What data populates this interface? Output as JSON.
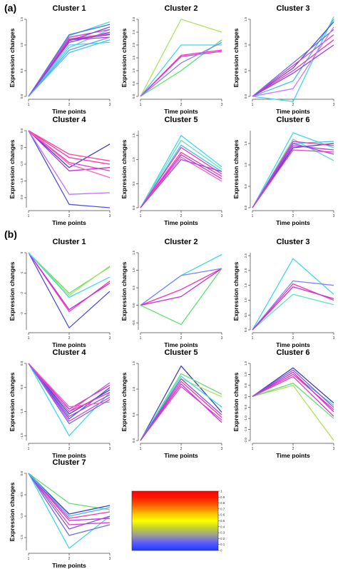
{
  "panels": [
    {
      "label": "(a)"
    },
    {
      "label": "(b)"
    }
  ],
  "colorbar": {
    "ticks": [
      "1",
      "0.9",
      "0.8",
      "0.7",
      "0.6",
      "0.5",
      "0.4",
      "0.3",
      "0.2",
      "0.1",
      "0"
    ],
    "gradient": [
      "#1a3cff",
      "#5a5aff",
      "#9a9a9a",
      "#c0d030",
      "#ffff00",
      "#ffbf00",
      "#ff6600",
      "#ff2200",
      "#ff0000"
    ]
  },
  "chart_data": [
    {
      "panel": "(a)",
      "type": "line",
      "title": "Cluster 1",
      "xlabel": "Time points",
      "ylabel": "Expression changes",
      "x": [
        1,
        2,
        3
      ],
      "yticks": [
        0,
        0.5,
        1.0,
        1.5
      ],
      "ylim": [
        0,
        1.5
      ],
      "series": [
        {
          "color": "#4fd1e8",
          "values": [
            0,
            1.18,
            1.45
          ]
        },
        {
          "color": "#4fd1e8",
          "values": [
            0,
            1.0,
            1.05
          ]
        },
        {
          "color": "#40c8f0",
          "values": [
            0,
            0.85,
            1.1
          ]
        },
        {
          "color": "#4fd1e8",
          "values": [
            0,
            0.95,
            1.3
          ]
        },
        {
          "color": "#3a7be0",
          "values": [
            0,
            1.2,
            1.4
          ]
        },
        {
          "color": "#5050d0",
          "values": [
            0,
            1.1,
            1.2
          ]
        },
        {
          "color": "#9040e0",
          "values": [
            0,
            1.05,
            1.25
          ]
        },
        {
          "color": "#e040c8",
          "values": [
            0,
            1.15,
            1.3
          ]
        },
        {
          "color": "#c030e0",
          "values": [
            0,
            1.1,
            1.15
          ]
        },
        {
          "color": "#ff40b0",
          "values": [
            0,
            1.12,
            1.22
          ]
        },
        {
          "color": "#7050e0",
          "values": [
            0,
            1.08,
            1.35
          ]
        },
        {
          "color": "#60a0f0",
          "values": [
            0,
            0.9,
            1.15
          ]
        }
      ]
    },
    {
      "panel": "(a)",
      "type": "line",
      "title": "Cluster 2",
      "xlabel": "Time points",
      "ylabel": "Expression changes",
      "x": [
        1,
        2,
        3
      ],
      "yticks": [
        0,
        0.5,
        1.0,
        1.5,
        2.0,
        2.5,
        3.0
      ],
      "ylim": [
        0,
        3.0
      ],
      "series": [
        {
          "color": "#b0e060",
          "values": [
            0,
            3.0,
            2.5
          ]
        },
        {
          "color": "#60e070",
          "values": [
            0,
            1.0,
            2.2
          ]
        },
        {
          "color": "#40d8e8",
          "values": [
            0,
            2.0,
            2.0
          ]
        },
        {
          "color": "#ff30b0",
          "values": [
            0,
            1.6,
            1.8
          ]
        },
        {
          "color": "#c040e0",
          "values": [
            0,
            1.55,
            1.75
          ]
        },
        {
          "color": "#8080ff",
          "values": [
            0,
            1.3,
            2.1
          ]
        }
      ]
    },
    {
      "panel": "(a)",
      "type": "line",
      "title": "Cluster 3",
      "xlabel": "Time points",
      "ylabel": "Expression changes",
      "x": [
        1,
        2,
        3
      ],
      "yticks": [
        0,
        0.5,
        1.0,
        1.5
      ],
      "ylim": [
        0,
        1.5
      ],
      "series": [
        {
          "color": "#40d8e8",
          "values": [
            0,
            -0.1,
            1.55
          ]
        },
        {
          "color": "#40c0f0",
          "values": [
            0,
            0.3,
            1.5
          ]
        },
        {
          "color": "#5050d0",
          "values": [
            0,
            0.55,
            1.45
          ]
        },
        {
          "color": "#e040c8",
          "values": [
            0,
            0.6,
            1.2
          ]
        },
        {
          "color": "#ff30b0",
          "values": [
            0,
            0.5,
            1.1
          ]
        },
        {
          "color": "#9040e0",
          "values": [
            0,
            0.45,
            1.0
          ]
        },
        {
          "color": "#7070e0",
          "values": [
            0,
            0.65,
            1.3
          ]
        },
        {
          "color": "#d070ff",
          "values": [
            0,
            0.15,
            1.35
          ]
        }
      ]
    },
    {
      "panel": "(a)",
      "type": "line",
      "title": "Cluster 4",
      "xlabel": "Time points",
      "ylabel": "Expression changes",
      "x": [
        1,
        2,
        3
      ],
      "yticks": [
        0,
        -0.5,
        -1.0,
        -1.5,
        -2.0
      ],
      "ylim": [
        -2.3,
        0
      ],
      "series": [
        {
          "color": "#5050e0",
          "values": [
            0,
            -2.2,
            -2.3
          ]
        },
        {
          "color": "#c070ff",
          "values": [
            0,
            -1.9,
            -1.85
          ]
        },
        {
          "color": "#4040c0",
          "values": [
            0,
            -1.1,
            -0.4
          ]
        },
        {
          "color": "#ff30b0",
          "values": [
            0,
            -0.8,
            -1.0
          ]
        },
        {
          "color": "#e040c8",
          "values": [
            0,
            -0.95,
            -1.2
          ]
        },
        {
          "color": "#c030e0",
          "values": [
            0,
            -1.2,
            -1.1
          ]
        },
        {
          "color": "#ff60c0",
          "values": [
            0,
            -1.0,
            -1.4
          ]
        },
        {
          "color": "#ff40a0",
          "values": [
            0,
            -0.7,
            -0.9
          ]
        }
      ]
    },
    {
      "panel": "(a)",
      "type": "line",
      "title": "Cluster 5",
      "xlabel": "Time points",
      "ylabel": "Expression changes",
      "x": [
        1,
        2,
        3
      ],
      "yticks": [
        0,
        0.5,
        1.0,
        1.5
      ],
      "ylim": [
        0,
        1.6
      ],
      "series": [
        {
          "color": "#40d8e8",
          "values": [
            0,
            1.5,
            0.85
          ]
        },
        {
          "color": "#60e0c0",
          "values": [
            0,
            1.4,
            0.8
          ]
        },
        {
          "color": "#40c0f0",
          "values": [
            0,
            1.3,
            0.75
          ]
        },
        {
          "color": "#e040c8",
          "values": [
            0,
            1.25,
            0.7
          ]
        },
        {
          "color": "#ff30b0",
          "values": [
            0,
            1.15,
            0.65
          ]
        },
        {
          "color": "#c030e0",
          "values": [
            0,
            1.1,
            0.6
          ]
        },
        {
          "color": "#ff60c0",
          "values": [
            0,
            1.05,
            0.55
          ]
        },
        {
          "color": "#9050e0",
          "values": [
            0,
            1.0,
            0.75
          ]
        }
      ]
    },
    {
      "panel": "(a)",
      "type": "line",
      "title": "Cluster 6",
      "xlabel": "Time points",
      "ylabel": "Expression changes",
      "x": [
        1,
        2,
        3
      ],
      "yticks": [
        0,
        0.5,
        1.0,
        1.5
      ],
      "ylim": [
        0,
        1.8
      ],
      "series": [
        {
          "color": "#40d8e8",
          "values": [
            0,
            1.75,
            1.4
          ]
        },
        {
          "color": "#60e0c0",
          "values": [
            0,
            1.6,
            1.1
          ]
        },
        {
          "color": "#40c0f0",
          "values": [
            0,
            1.5,
            1.55
          ]
        },
        {
          "color": "#4040c0",
          "values": [
            0,
            1.4,
            1.5
          ]
        },
        {
          "color": "#ff30b0",
          "values": [
            0,
            1.55,
            1.45
          ]
        },
        {
          "color": "#c030e0",
          "values": [
            0,
            1.45,
            1.35
          ]
        },
        {
          "color": "#9050e0",
          "values": [
            0,
            1.5,
            1.25
          ]
        },
        {
          "color": "#e040c8",
          "values": [
            0,
            1.35,
            1.3
          ]
        }
      ]
    },
    {
      "panel": "(b)",
      "type": "line",
      "title": "Cluster 1",
      "xlabel": "Time points",
      "ylabel": "Expression changes",
      "x": [
        1,
        2,
        3
      ],
      "yticks": [
        0,
        -1,
        -2,
        -3
      ],
      "ylim": [
        -3.8,
        0
      ],
      "series": [
        {
          "color": "#5050e0",
          "values": [
            0,
            -3.7,
            -1.9
          ]
        },
        {
          "color": "#ff30b0",
          "values": [
            0,
            -2.9,
            -1.4
          ]
        },
        {
          "color": "#c030e0",
          "values": [
            0,
            -2.8,
            -1.5
          ]
        },
        {
          "color": "#60e070",
          "values": [
            0,
            -2.0,
            -0.7
          ]
        },
        {
          "color": "#b0e060",
          "values": [
            0,
            -2.1,
            -0.65
          ]
        },
        {
          "color": "#40d8e8",
          "values": [
            0,
            -2.2,
            -1.2
          ]
        }
      ]
    },
    {
      "panel": "(b)",
      "type": "line",
      "title": "Cluster 2",
      "xlabel": "Time points",
      "ylabel": "Expression changes",
      "x": [
        1,
        2,
        3
      ],
      "yticks": [
        -0.5,
        0,
        0.5,
        1.0,
        1.5
      ],
      "ylim": [
        -0.7,
        1.5
      ],
      "series": [
        {
          "color": "#40d8e8",
          "values": [
            0,
            0.85,
            1.45
          ]
        },
        {
          "color": "#8080ff",
          "values": [
            0,
            0.85,
            1.05
          ]
        },
        {
          "color": "#ff30b0",
          "values": [
            0,
            0.45,
            1.05
          ]
        },
        {
          "color": "#c030e0",
          "values": [
            0,
            0.25,
            1.05
          ]
        },
        {
          "color": "#60e070",
          "values": [
            0,
            -0.55,
            1.05
          ]
        }
      ]
    },
    {
      "panel": "(b)",
      "type": "line",
      "title": "Cluster 3",
      "xlabel": "Time points",
      "ylabel": "Expression changes",
      "x": [
        1,
        2,
        3
      ],
      "yticks": [
        0,
        0.5,
        1.0,
        1.5,
        2.0,
        2.5
      ],
      "ylim": [
        0,
        2.6
      ],
      "series": [
        {
          "color": "#40d8e8",
          "values": [
            0,
            2.4,
            1.2
          ]
        },
        {
          "color": "#60e0c0",
          "values": [
            0,
            1.2,
            0.85
          ]
        },
        {
          "color": "#8080ff",
          "values": [
            0,
            1.65,
            1.5
          ]
        },
        {
          "color": "#ff30b0",
          "values": [
            0,
            1.55,
            1.0
          ]
        },
        {
          "color": "#c030e0",
          "values": [
            0,
            1.45,
            1.05
          ]
        }
      ]
    },
    {
      "panel": "(b)",
      "type": "line",
      "title": "Cluster 4",
      "xlabel": "Time points",
      "ylabel": "Expression changes",
      "x": [
        1,
        2,
        3
      ],
      "yticks": [
        0,
        -0.5,
        -1.0,
        -1.5
      ],
      "ylim": [
        -1.6,
        0
      ],
      "series": [
        {
          "color": "#40d8e8",
          "values": [
            0,
            -1.5,
            -0.6
          ]
        },
        {
          "color": "#4040c0",
          "values": [
            0,
            -1.05,
            -0.55
          ]
        },
        {
          "color": "#5050e0",
          "values": [
            0,
            -1.15,
            -0.5
          ]
        },
        {
          "color": "#9050e0",
          "values": [
            0,
            -1.1,
            -0.65
          ]
        },
        {
          "color": "#ff30b0",
          "values": [
            0,
            -1.0,
            -0.6
          ]
        },
        {
          "color": "#c030e0",
          "values": [
            0,
            -0.95,
            -0.45
          ]
        },
        {
          "color": "#e040c8",
          "values": [
            0,
            -1.2,
            -0.7
          ]
        },
        {
          "color": "#ff60c0",
          "values": [
            0,
            -0.9,
            -0.8
          ]
        },
        {
          "color": "#7070e0",
          "values": [
            0,
            -1.25,
            -0.75
          ]
        },
        {
          "color": "#d050d0",
          "values": [
            0,
            -1.0,
            -0.4
          ]
        }
      ]
    },
    {
      "panel": "(b)",
      "type": "line",
      "title": "Cluster 5",
      "xlabel": "Time points",
      "ylabel": "Expression changes",
      "x": [
        1,
        2,
        3
      ],
      "yticks": [
        0,
        0.5,
        1.0,
        1.5
      ],
      "ylim": [
        0,
        1.5
      ],
      "series": [
        {
          "color": "#4040c0",
          "values": [
            0,
            1.45,
            0.55
          ]
        },
        {
          "color": "#60e070",
          "values": [
            0,
            1.3,
            0.9
          ]
        },
        {
          "color": "#b0e060",
          "values": [
            0,
            1.2,
            0.85
          ]
        },
        {
          "color": "#40d8e8",
          "values": [
            0,
            1.25,
            0.65
          ]
        },
        {
          "color": "#ff30b0",
          "values": [
            0,
            1.15,
            0.45
          ]
        },
        {
          "color": "#c030e0",
          "values": [
            0,
            1.1,
            0.35
          ]
        },
        {
          "color": "#e040c8",
          "values": [
            0,
            1.05,
            0.4
          ]
        },
        {
          "color": "#9050e0",
          "values": [
            0,
            1.2,
            0.5
          ]
        }
      ]
    },
    {
      "panel": "(b)",
      "type": "line",
      "title": "Cluster 6",
      "xlabel": "Time points",
      "ylabel": "Expression changes",
      "x": [
        1,
        2,
        3
      ],
      "yticks": [
        -2.0,
        -1.5,
        -1.0,
        -0.5,
        0,
        0.5,
        1.0,
        1.5
      ],
      "ylim": [
        -2.0,
        1.5
      ],
      "series": [
        {
          "color": "#b0e060",
          "values": [
            0,
            0.5,
            -2.0
          ]
        },
        {
          "color": "#60e070",
          "values": [
            0,
            0.6,
            -1.0
          ]
        },
        {
          "color": "#40d8e8",
          "values": [
            0,
            1.0,
            -0.4
          ]
        },
        {
          "color": "#4040c0",
          "values": [
            0,
            1.3,
            -0.3
          ]
        },
        {
          "color": "#ff30b0",
          "values": [
            0,
            1.0,
            -0.6
          ]
        },
        {
          "color": "#c030e0",
          "values": [
            0,
            1.1,
            -0.7
          ]
        },
        {
          "color": "#e040c8",
          "values": [
            0,
            0.9,
            -0.9
          ]
        },
        {
          "color": "#9050e0",
          "values": [
            0,
            1.2,
            -0.5
          ]
        }
      ]
    },
    {
      "panel": "(b)",
      "type": "line",
      "title": "Cluster 7",
      "xlabel": "Time points",
      "ylabel": "Expression changes",
      "x": [
        1,
        2,
        3
      ],
      "yticks": [
        0,
        -0.5,
        -1.0,
        -1.5
      ],
      "ylim": [
        -1.8,
        0
      ],
      "series": [
        {
          "color": "#60e070",
          "values": [
            0,
            -0.7,
            -0.85
          ]
        },
        {
          "color": "#40d8e8",
          "values": [
            0,
            -1.75,
            -1.0
          ]
        },
        {
          "color": "#4040c0",
          "values": [
            0,
            -0.95,
            -0.75
          ]
        },
        {
          "color": "#ff30b0",
          "values": [
            0,
            -1.05,
            -0.9
          ]
        },
        {
          "color": "#c030e0",
          "values": [
            0,
            -1.1,
            -1.05
          ]
        },
        {
          "color": "#e040c8",
          "values": [
            0,
            -1.2,
            -1.15
          ]
        },
        {
          "color": "#9050e0",
          "values": [
            0,
            -1.3,
            -1.0
          ]
        },
        {
          "color": "#7070e0",
          "values": [
            0,
            -1.45,
            -1.2
          ]
        },
        {
          "color": "#40c0f0",
          "values": [
            0,
            -1.0,
            -0.8
          ]
        }
      ]
    }
  ]
}
